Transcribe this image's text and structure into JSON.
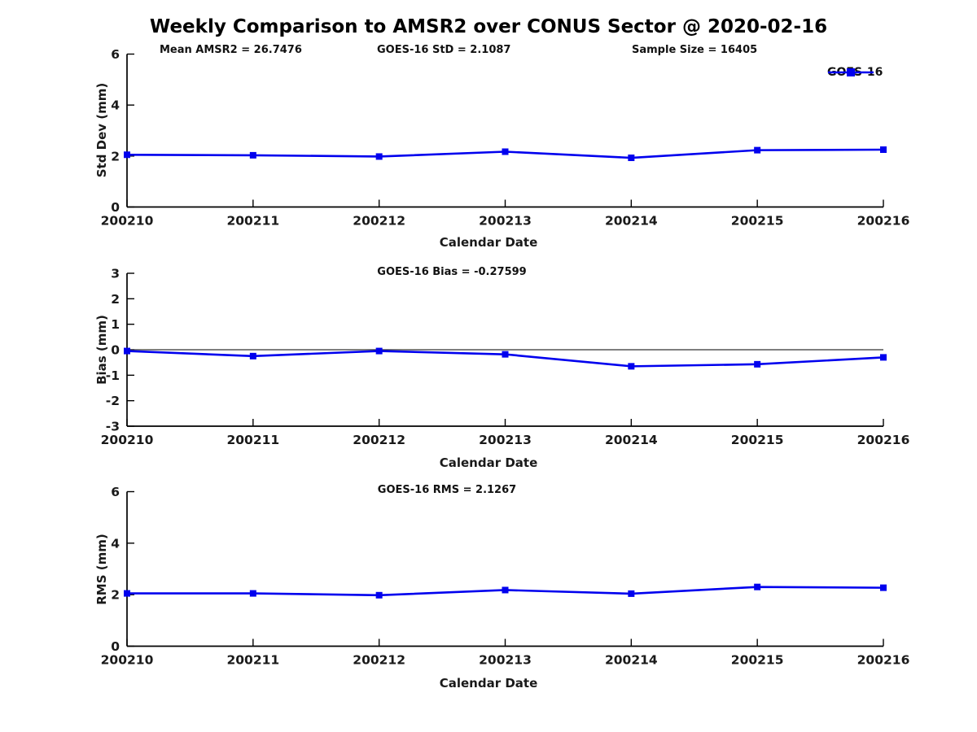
{
  "title": "Weekly Comparison to AMSR2 over CONUS Sector @ 2020-02-16",
  "colors": {
    "line": "#0000ee",
    "text": "#1a1a1a",
    "axis": "#000000",
    "zero_line": "#303030"
  },
  "legend": {
    "label": "GOES-16"
  },
  "chart_data": [
    {
      "type": "line",
      "title": "",
      "annotations": [
        "Mean AMSR2 = 26.7476",
        "GOES-16 StD = 2.1087",
        "Sample Size = 16405"
      ],
      "categories": [
        "200210",
        "200211",
        "200212",
        "200213",
        "200214",
        "200215",
        "200216"
      ],
      "series": [
        {
          "name": "GOES-16",
          "values": [
            2.05,
            2.03,
            1.98,
            2.17,
            1.93,
            2.23,
            2.25
          ]
        }
      ],
      "xlabel": "Calendar Date",
      "ylabel": "Std Dev (mm)",
      "ylim": [
        0,
        6
      ],
      "yticks": [
        0,
        2,
        4,
        6
      ],
      "grid": false,
      "legend_position": "top-right",
      "marker": "square"
    },
    {
      "type": "line",
      "subtitle": "GOES-16 Bias  = -0.27599",
      "categories": [
        "200210",
        "200211",
        "200212",
        "200213",
        "200214",
        "200215",
        "200216"
      ],
      "series": [
        {
          "name": "GOES-16",
          "values": [
            -0.05,
            -0.25,
            -0.05,
            -0.18,
            -0.65,
            -0.57,
            -0.3
          ]
        }
      ],
      "xlabel": "Calendar Date",
      "ylabel": "Bias (mm)",
      "ylim": [
        -3,
        3
      ],
      "yticks": [
        -3,
        -2,
        -1,
        0,
        1,
        2,
        3
      ],
      "zero_line": true,
      "grid": false,
      "marker": "square"
    },
    {
      "type": "line",
      "subtitle": "GOES-16 RMS = 2.1267",
      "categories": [
        "200210",
        "200211",
        "200212",
        "200213",
        "200214",
        "200215",
        "200216"
      ],
      "series": [
        {
          "name": "GOES-16",
          "values": [
            2.05,
            2.05,
            1.98,
            2.18,
            2.04,
            2.3,
            2.27
          ]
        }
      ],
      "xlabel": "Calendar Date",
      "ylabel": "RMS (mm)",
      "ylim": [
        0,
        6
      ],
      "yticks": [
        0,
        2,
        4,
        6
      ],
      "grid": false,
      "marker": "square"
    }
  ]
}
